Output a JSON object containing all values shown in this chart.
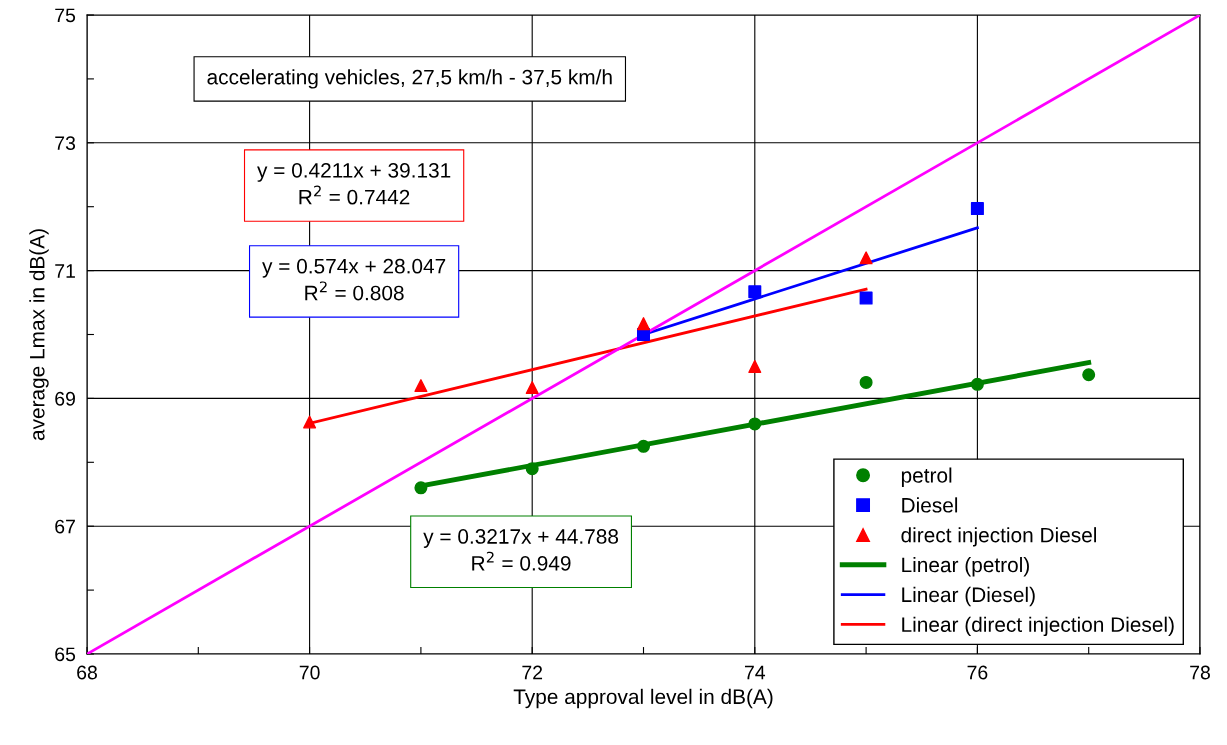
{
  "chart_data": {
    "type": "scatter",
    "xlabel": "Type approval level in dB(A)",
    "ylabel": "average Lmax in dB(A)",
    "xlim": [
      68,
      78
    ],
    "ylim": [
      65,
      75
    ],
    "xticks": [
      68,
      {
        "value": 69,
        "label": null
      },
      70,
      {
        "value": 71,
        "label": null
      },
      72,
      {
        "value": 73,
        "label": null
      },
      74,
      {
        "value": 75,
        "label": null
      },
      76,
      {
        "value": 77,
        "label": null
      },
      78
    ],
    "yticks": [
      65,
      {
        "value": 66,
        "label": null
      },
      67,
      {
        "value": 68,
        "label": null
      },
      69,
      {
        "value": 70,
        "label": null
      },
      71,
      {
        "value": 72,
        "label": null
      },
      73,
      {
        "value": 74,
        "label": null
      },
      75
    ],
    "grid": true,
    "legend": "bottom right",
    "series": [
      {
        "name": "petrol",
        "marker": "circle",
        "color": "#008000",
        "x": [
          71,
          72,
          73,
          74,
          75,
          76,
          77
        ],
        "values": [
          67.6,
          67.9,
          68.25,
          68.6,
          69.25,
          69.22,
          69.37
        ]
      },
      {
        "name": "Diesel",
        "marker": "square",
        "color": "#0000ff",
        "x": [
          73,
          74,
          75,
          76
        ],
        "values": [
          70.0,
          70.67,
          70.57,
          71.97
        ]
      },
      {
        "name": "direct injection Diesel",
        "marker": "triangle",
        "color": "#ff0000",
        "x": [
          70,
          71,
          72,
          73,
          74,
          75
        ],
        "values": [
          68.63,
          69.2,
          69.17,
          70.17,
          69.5,
          71.2
        ]
      },
      {
        "name": "Linear (petrol)",
        "type": "line",
        "color": "#008000",
        "x": [
          71,
          77
        ],
        "values": [
          67.63,
          69.56
        ]
      },
      {
        "name": "Linear (Diesel)",
        "type": "line",
        "color": "#0000ff",
        "x": [
          73,
          76
        ],
        "values": [
          70.0,
          71.67
        ]
      },
      {
        "name": "Linear (direct injection Diesel)",
        "type": "line",
        "color": "#ff0000",
        "x": [
          70,
          75
        ],
        "values": [
          68.61,
          70.71
        ]
      },
      {
        "type": "line",
        "color": "#ff00ff",
        "x": [
          68,
          78
        ],
        "values": [
          65,
          75
        ]
      }
    ],
    "annotations": [
      "accelerating vehicles, 27,5 km/h - 37,5 km/h",
      "y = 0.4211x + 39.131\nR$^{2}$ = 0.7442",
      "y = 0.574x + 28.047\nR$^{2}$ = 0.808",
      "y = 0.3217x + 44.788\nR$^{2}$ = 0.949"
    ]
  }
}
